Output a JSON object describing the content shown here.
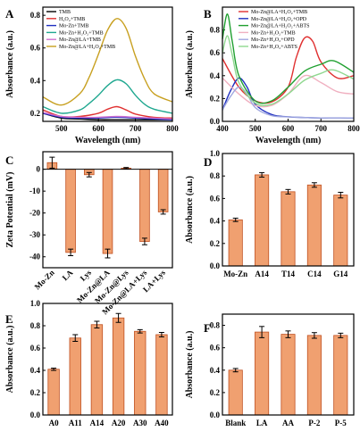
{
  "chart_data": [
    {
      "panel": "A",
      "type": "line",
      "xlabel": "Wavelength (nm)",
      "ylabel": "Absorbance (a.u.)",
      "xlim": [
        450,
        800
      ],
      "ylim": [
        0.15,
        0.85
      ],
      "xticks": [
        "500",
        "600",
        "700",
        "800"
      ],
      "yticks": [
        "0.2",
        "0.4",
        "0.6",
        "0.8"
      ],
      "legend_position": "top-left",
      "series": [
        {
          "name": "TMB",
          "color": "#000000",
          "x": [
            450,
            500,
            550,
            600,
            650,
            700,
            750,
            800
          ],
          "y": [
            0.2,
            0.17,
            0.165,
            0.16,
            0.16,
            0.16,
            0.16,
            0.16
          ]
        },
        {
          "name": "H₂O₂+TMB",
          "color": "#e03030",
          "x": [
            450,
            500,
            550,
            600,
            625,
            650,
            675,
            700,
            750,
            800
          ],
          "y": [
            0.22,
            0.18,
            0.18,
            0.2,
            0.225,
            0.24,
            0.22,
            0.195,
            0.175,
            0.17
          ]
        },
        {
          "name": "Mo-Zn+TMB",
          "color": "#2030c0",
          "x": [
            450,
            500,
            550,
            600,
            650,
            700,
            750,
            800
          ],
          "y": [
            0.2,
            0.175,
            0.17,
            0.17,
            0.175,
            0.17,
            0.165,
            0.16
          ]
        },
        {
          "name": "Mo-Zn+H₂O₂+TMB",
          "color": "#20a890",
          "x": [
            450,
            500,
            550,
            575,
            600,
            625,
            650,
            675,
            700,
            725,
            750,
            800
          ],
          "y": [
            0.24,
            0.2,
            0.22,
            0.26,
            0.31,
            0.37,
            0.405,
            0.38,
            0.31,
            0.255,
            0.225,
            0.2
          ]
        },
        {
          "name": "Mo-Zn@LA+TMB",
          "color": "#d070d0",
          "x": [
            450,
            500,
            550,
            600,
            650,
            700,
            750,
            800
          ],
          "y": [
            0.205,
            0.18,
            0.175,
            0.175,
            0.18,
            0.175,
            0.17,
            0.165
          ]
        },
        {
          "name": "Mo-Zn@LA+H₂O₂+TMB",
          "color": "#c8a020",
          "x": [
            450,
            500,
            550,
            575,
            600,
            625,
            650,
            675,
            700,
            725,
            750,
            800
          ],
          "y": [
            0.3,
            0.25,
            0.32,
            0.42,
            0.56,
            0.71,
            0.78,
            0.72,
            0.55,
            0.41,
            0.32,
            0.27
          ]
        }
      ]
    },
    {
      "panel": "B",
      "type": "line",
      "xlabel": "Wavelength (nm)",
      "ylabel": "Absorbance (a.u.)",
      "xlim": [
        400,
        800
      ],
      "ylim": [
        0.0,
        1.0
      ],
      "xticks": [
        "400",
        "500",
        "600",
        "700",
        "800"
      ],
      "yticks": [
        "0.0",
        "0.2",
        "0.4",
        "0.6",
        "0.8"
      ],
      "legend_position": "top-right",
      "series": [
        {
          "name": "Mo-Zn@LA+H₂O₂+TMB",
          "color": "#e03030",
          "x": [
            400,
            450,
            500,
            550,
            600,
            625,
            650,
            675,
            700,
            750,
            800
          ],
          "y": [
            0.55,
            0.3,
            0.18,
            0.17,
            0.3,
            0.56,
            0.73,
            0.7,
            0.52,
            0.38,
            0.4
          ]
        },
        {
          "name": "Mo-Zn@LA+H₂O₂+OPD",
          "color": "#2030c0",
          "x": [
            400,
            425,
            450,
            475,
            500,
            550,
            600,
            700,
            800
          ],
          "y": [
            0.1,
            0.27,
            0.38,
            0.3,
            0.15,
            0.06,
            0.04,
            0.03,
            0.03
          ]
        },
        {
          "name": "Mo-Zn@LA+H₂O₂+ABTS",
          "color": "#20a030",
          "x": [
            400,
            415,
            430,
            450,
            500,
            550,
            600,
            650,
            700,
            740,
            800
          ],
          "y": [
            0.72,
            0.94,
            0.7,
            0.4,
            0.18,
            0.18,
            0.3,
            0.44,
            0.5,
            0.53,
            0.43
          ]
        },
        {
          "name": "Mo-Zn+H₂O₂+TMB",
          "color": "#f0b0c0",
          "x": [
            400,
            450,
            500,
            550,
            600,
            650,
            700,
            750,
            800
          ],
          "y": [
            0.38,
            0.24,
            0.14,
            0.14,
            0.24,
            0.4,
            0.34,
            0.26,
            0.24
          ]
        },
        {
          "name": "Mo-Zn+H₂O₂+OPD",
          "color": "#a0a8e0",
          "x": [
            400,
            425,
            450,
            475,
            500,
            550,
            600,
            700,
            800
          ],
          "y": [
            0.1,
            0.22,
            0.3,
            0.24,
            0.12,
            0.05,
            0.04,
            0.03,
            0.03
          ]
        },
        {
          "name": "Mo-Zn+H₂O₂+ABTS",
          "color": "#90d890",
          "x": [
            400,
            415,
            430,
            450,
            500,
            550,
            600,
            650,
            700,
            740,
            800
          ],
          "y": [
            0.6,
            0.75,
            0.58,
            0.34,
            0.16,
            0.15,
            0.24,
            0.36,
            0.42,
            0.45,
            0.37
          ]
        }
      ]
    },
    {
      "panel": "C",
      "type": "bar",
      "ylabel": "Zeta Potential (mV)",
      "ylim": [
        -45,
        8
      ],
      "yticks": [
        "-40",
        "-30",
        "-20",
        "-10",
        "0"
      ],
      "categories": [
        "Mo-Zn",
        "LA",
        "Lys",
        "Mo-Zn@LA",
        "Mo-Zn@Lys",
        "Mo-Zn@LA+Lys",
        "LA+Lys"
      ],
      "values": [
        3.0,
        -38.0,
        -2.5,
        -38.5,
        0.5,
        -33.0,
        -19.5
      ],
      "errors": [
        2.5,
        1.5,
        1.0,
        2.0,
        0.3,
        1.5,
        1.0
      ]
    },
    {
      "panel": "D",
      "type": "bar",
      "ylabel": "Absorbance (a.u.)",
      "ylim": [
        0.0,
        1.0
      ],
      "yticks": [
        "0.0",
        "0.2",
        "0.4",
        "0.6",
        "0.8",
        "1.0"
      ],
      "categories": [
        "Mo-Zn",
        "A14",
        "T14",
        "C14",
        "G14"
      ],
      "values": [
        0.41,
        0.81,
        0.66,
        0.72,
        0.63
      ],
      "errors": [
        0.015,
        0.02,
        0.02,
        0.02,
        0.025
      ]
    },
    {
      "panel": "E",
      "type": "bar",
      "ylabel": "Absorbance (a.u.)",
      "ylim": [
        0.0,
        1.0
      ],
      "yticks": [
        "0.0",
        "0.2",
        "0.4",
        "0.6",
        "0.8",
        "1.0"
      ],
      "categories": [
        "A0",
        "A11",
        "A14",
        "A20",
        "A30",
        "A40"
      ],
      "values": [
        0.41,
        0.69,
        0.81,
        0.87,
        0.75,
        0.72
      ],
      "errors": [
        0.01,
        0.03,
        0.03,
        0.04,
        0.015,
        0.02
      ]
    },
    {
      "panel": "F",
      "type": "bar",
      "ylabel": "Absorbance (a.u.)",
      "ylim": [
        0.0,
        0.9
      ],
      "yticks": [
        "0.0",
        "0.2",
        "0.4",
        "0.6",
        "0.8"
      ],
      "categories": [
        "Blank",
        "LA",
        "AA",
        "P-2",
        "P-5"
      ],
      "values": [
        0.4,
        0.74,
        0.72,
        0.71,
        0.71
      ],
      "errors": [
        0.015,
        0.05,
        0.03,
        0.025,
        0.02
      ]
    }
  ],
  "bar_color": "#f0a070",
  "bar_edge": "#c05020"
}
